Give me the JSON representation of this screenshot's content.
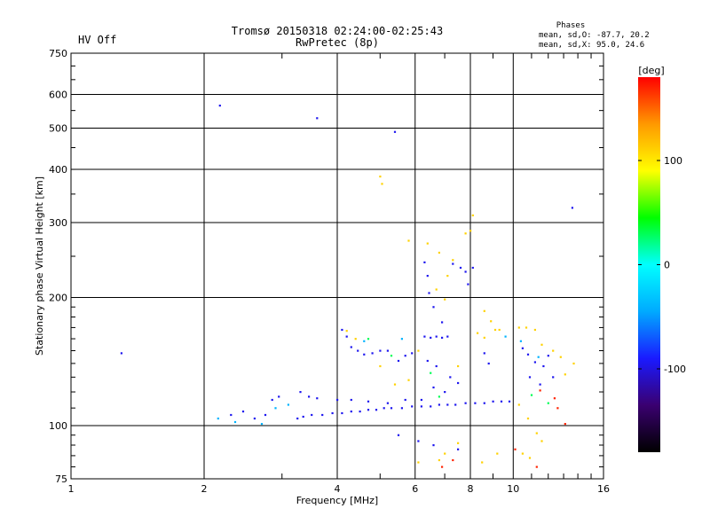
{
  "header": {
    "status": "HV Off",
    "status_color": "#cc0000",
    "title_line1": "Tromsø 20150318 02:24:00-02:25:43",
    "title_line2": "RwPretec (8p)",
    "phase_title": "Phases",
    "phase_line1": "mean, sd,O: -87.7, 20.2",
    "phase_line2": "mean, sd,X:  95.0, 24.6"
  },
  "chart_data": {
    "type": "scatter",
    "xlabel": "Frequency [MHz]",
    "ylabel": "Stationary phase Virtual Height [km]",
    "xscale": "log",
    "yscale": "log",
    "xlim": [
      1,
      16
    ],
    "ylim": [
      75,
      750
    ],
    "grid": true,
    "x_ticks": [
      1,
      2,
      4,
      6,
      8,
      10,
      16
    ],
    "y_ticks": [
      75,
      100,
      200,
      300,
      400,
      500,
      600,
      750
    ],
    "colorbar": {
      "label": "[deg]",
      "range": [
        -180,
        180
      ],
      "ticks": [
        100,
        0,
        -100
      ],
      "colors": [
        "#000000",
        "#3a0070",
        "#1a1aff",
        "#00aaff",
        "#00ffff",
        "#00ff00",
        "#ffff00",
        "#ff9900",
        "#ff0000"
      ]
    },
    "series": [
      {
        "phase": -95,
        "points": [
          [
            1.3,
            148
          ],
          [
            2.17,
            565
          ],
          [
            3.6,
            528
          ],
          [
            5.4,
            490
          ],
          [
            13.6,
            325
          ],
          [
            2.3,
            106
          ],
          [
            2.45,
            108
          ],
          [
            2.6,
            104
          ],
          [
            2.75,
            106
          ],
          [
            2.85,
            115
          ],
          [
            2.95,
            117
          ],
          [
            3.3,
            120
          ],
          [
            3.45,
            117
          ],
          [
            3.6,
            116
          ],
          [
            3.25,
            104
          ],
          [
            3.35,
            105
          ],
          [
            3.5,
            106
          ],
          [
            3.7,
            106
          ],
          [
            3.9,
            107
          ],
          [
            4.1,
            107
          ],
          [
            4.3,
            108
          ],
          [
            4.5,
            108
          ],
          [
            4.7,
            109
          ],
          [
            4.9,
            109
          ],
          [
            5.1,
            110
          ],
          [
            5.3,
            110
          ],
          [
            5.6,
            110
          ],
          [
            5.9,
            111
          ],
          [
            6.2,
            111
          ],
          [
            6.5,
            111
          ],
          [
            6.8,
            112
          ],
          [
            7.1,
            112
          ],
          [
            7.4,
            112
          ],
          [
            7.8,
            113
          ],
          [
            8.2,
            113
          ],
          [
            8.6,
            113
          ],
          [
            9.0,
            114
          ],
          [
            9.4,
            114
          ],
          [
            9.8,
            114
          ],
          [
            4.0,
            115
          ],
          [
            4.3,
            115
          ],
          [
            4.7,
            114
          ],
          [
            5.2,
            113
          ],
          [
            5.7,
            115
          ],
          [
            6.2,
            115
          ],
          [
            4.1,
            168
          ],
          [
            4.2,
            162
          ],
          [
            4.3,
            153
          ],
          [
            4.45,
            150
          ],
          [
            4.6,
            147
          ],
          [
            4.8,
            148
          ],
          [
            5.0,
            150
          ],
          [
            5.2,
            150
          ],
          [
            5.5,
            142
          ],
          [
            5.7,
            146
          ],
          [
            5.9,
            148
          ],
          [
            6.3,
            162
          ],
          [
            6.5,
            161
          ],
          [
            6.7,
            162
          ],
          [
            6.9,
            161
          ],
          [
            7.1,
            162
          ],
          [
            6.3,
            242
          ],
          [
            6.4,
            225
          ],
          [
            6.45,
            205
          ],
          [
            6.6,
            190
          ],
          [
            6.9,
            175
          ],
          [
            7.3,
            240
          ],
          [
            7.6,
            235
          ],
          [
            7.8,
            230
          ],
          [
            7.9,
            215
          ],
          [
            8.1,
            235
          ],
          [
            6.4,
            142
          ],
          [
            6.7,
            138
          ],
          [
            7.2,
            130
          ],
          [
            7.5,
            126
          ],
          [
            6.6,
            123
          ],
          [
            7.0,
            120
          ],
          [
            8.6,
            148
          ],
          [
            8.8,
            140
          ],
          [
            10.5,
            152
          ],
          [
            10.8,
            147
          ],
          [
            11.2,
            141
          ],
          [
            11.7,
            138
          ],
          [
            12.0,
            146
          ],
          [
            12.3,
            130
          ],
          [
            10.9,
            130
          ],
          [
            11.5,
            125
          ],
          [
            5.5,
            95
          ],
          [
            6.1,
            92
          ],
          [
            6.6,
            90
          ],
          [
            7.5,
            88
          ]
        ]
      },
      {
        "phase": -40,
        "points": [
          [
            2.15,
            104
          ],
          [
            2.35,
            102
          ],
          [
            2.7,
            101
          ],
          [
            2.9,
            110
          ],
          [
            3.1,
            112
          ],
          [
            4.6,
            158
          ],
          [
            5.6,
            160
          ],
          [
            9.6,
            162
          ],
          [
            10.4,
            158
          ],
          [
            11.4,
            145
          ]
        ]
      },
      {
        "phase": 110,
        "points": [
          [
            5.0,
            385
          ],
          [
            5.05,
            370
          ],
          [
            5.8,
            272
          ],
          [
            6.4,
            268
          ],
          [
            6.8,
            255
          ],
          [
            7.3,
            245
          ],
          [
            7.8,
            283
          ],
          [
            8.0,
            287
          ],
          [
            8.1,
            312
          ],
          [
            6.7,
            209
          ],
          [
            7.1,
            225
          ],
          [
            7.0,
            198
          ],
          [
            8.6,
            186
          ],
          [
            8.9,
            176
          ],
          [
            9.1,
            168
          ],
          [
            9.3,
            168
          ],
          [
            4.2,
            167
          ],
          [
            4.4,
            160
          ],
          [
            5.0,
            138
          ],
          [
            5.4,
            125
          ],
          [
            5.8,
            128
          ],
          [
            6.1,
            150
          ],
          [
            7.5,
            138
          ],
          [
            8.3,
            165
          ],
          [
            8.6,
            161
          ],
          [
            10.3,
            170
          ],
          [
            10.7,
            170
          ],
          [
            11.2,
            168
          ],
          [
            11.6,
            155
          ],
          [
            12.3,
            150
          ],
          [
            12.8,
            145
          ],
          [
            13.1,
            132
          ],
          [
            13.7,
            140
          ],
          [
            10.3,
            112
          ],
          [
            10.8,
            104
          ],
          [
            11.3,
            96
          ],
          [
            11.6,
            92
          ],
          [
            10.5,
            86
          ],
          [
            10.9,
            84
          ],
          [
            9.2,
            86
          ],
          [
            8.5,
            82
          ],
          [
            7.5,
            91
          ],
          [
            7.0,
            86
          ],
          [
            6.8,
            83
          ],
          [
            6.1,
            82
          ]
        ]
      },
      {
        "phase": 170,
        "points": [
          [
            6.9,
            80
          ],
          [
            7.3,
            83
          ],
          [
            10.1,
            88
          ],
          [
            11.3,
            80
          ],
          [
            12.4,
            116
          ],
          [
            12.6,
            110
          ],
          [
            13.1,
            101
          ],
          [
            11.5,
            121
          ]
        ]
      },
      {
        "phase": 30,
        "points": [
          [
            4.7,
            160
          ],
          [
            5.3,
            146
          ],
          [
            6.5,
            133
          ],
          [
            6.8,
            117
          ],
          [
            11.0,
            118
          ],
          [
            12.0,
            113
          ]
        ]
      }
    ]
  }
}
